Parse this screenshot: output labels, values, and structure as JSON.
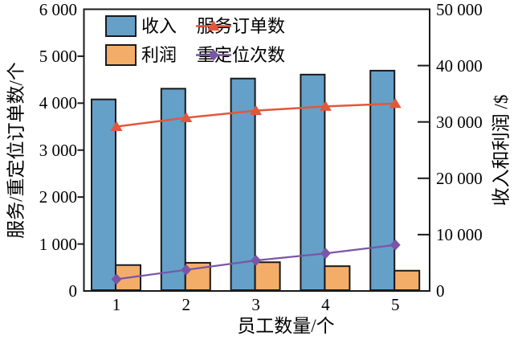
{
  "chart_data": {
    "type": "bar",
    "title": "",
    "categories": [
      "1",
      "2",
      "3",
      "4",
      "5"
    ],
    "xlabel": "员工数量/个",
    "left_axis": {
      "label": "服务/重定位订单数/个",
      "range": [
        0,
        6000
      ],
      "tick_step": 1000,
      "tick_labels": [
        "0",
        "1 000",
        "2 000",
        "3 000",
        "4 000",
        "5 000",
        "6 000"
      ]
    },
    "right_axis": {
      "label": "收入和利润 /$",
      "range": [
        0,
        50000
      ],
      "tick_step": 10000,
      "tick_labels": [
        "0",
        "10 000",
        "20 000",
        "30 000",
        "40 000",
        "50 000"
      ]
    },
    "series": [
      {
        "id": "revenue",
        "name": "收入",
        "type": "bar",
        "axis": "right",
        "color": "#64a0c8",
        "values": [
          34000,
          35900,
          37700,
          38400,
          39100
        ]
      },
      {
        "id": "profit",
        "name": "利润",
        "type": "bar",
        "axis": "right",
        "color": "#f4ad68",
        "values": [
          4600,
          5000,
          5100,
          4400,
          3600
        ]
      },
      {
        "id": "orders",
        "name": "服务订单数",
        "type": "line",
        "marker": "triangle",
        "axis": "left",
        "color": "#e2573b",
        "values": [
          3500,
          3690,
          3840,
          3930,
          3990
        ]
      },
      {
        "id": "relocations",
        "name": "重定位次数",
        "type": "line",
        "marker": "diamond",
        "axis": "left",
        "color": "#7a55a8",
        "values": [
          250,
          450,
          650,
          800,
          980
        ]
      }
    ],
    "grid": false,
    "legend_position": "top-left-inside",
    "axis_color": "#1a1a1a"
  }
}
